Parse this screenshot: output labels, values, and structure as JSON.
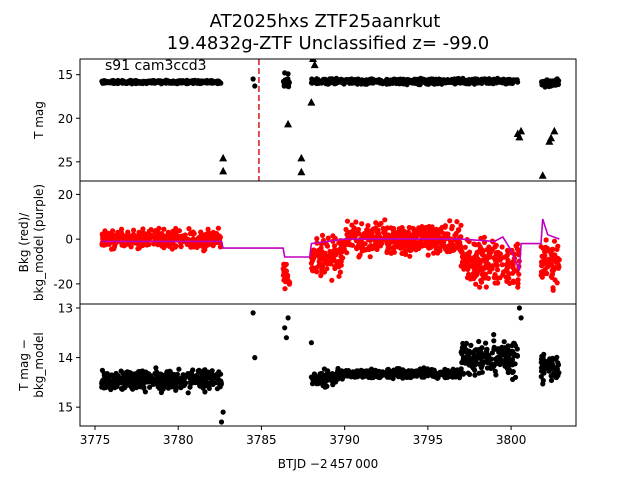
{
  "figure": {
    "title_line1": "AT2025hxs  ZTF25aanrkut",
    "title_line2": "19.4832g-ZTF Unclassified z= -99.0",
    "xlabel": "BTJD −2 457 000",
    "annotation": "s91 cam3ccd3"
  },
  "chart_data": [
    {
      "type": "scatter",
      "panel": "top",
      "ylabel": "T mag",
      "ylim": [
        27.2,
        13.2
      ],
      "xlim": [
        3774.1,
        3803.9
      ],
      "yticks": [
        15,
        20,
        25
      ],
      "vline": {
        "x": 3784.85,
        "color": "#d62728",
        "style": "dashed"
      },
      "series": [
        {
          "marker": "circle",
          "color": "#000000",
          "segments": [
            [
              3775.4,
              3782.6,
              15.6,
              16.1
            ],
            [
              3786.3,
              3786.7,
              15.3,
              16.5
            ],
            [
              3788.0,
              3800.4,
              15.3,
              16.2
            ],
            [
              3801.8,
              3802.9,
              15.3,
              16.6
            ]
          ],
          "extra": [
            [
              3784.5,
              15.5
            ],
            [
              3784.6,
              16.3
            ],
            [
              3786.4,
              14.8
            ],
            [
              3786.6,
              14.9
            ]
          ]
        },
        {
          "marker": "triangle",
          "color": "#000000",
          "points": [
            [
              3782.7,
              24.6
            ],
            [
              3782.7,
              26.1
            ],
            [
              3786.6,
              20.7
            ],
            [
              3787.4,
              24.6
            ],
            [
              3787.4,
              26.2
            ],
            [
              3788.0,
              18.2
            ],
            [
              3788.1,
              13.2
            ],
            [
              3788.2,
              13.9
            ],
            [
              3800.4,
              21.8
            ],
            [
              3800.5,
              22.2
            ],
            [
              3800.6,
              21.5
            ],
            [
              3801.9,
              26.6
            ],
            [
              3802.3,
              22.7
            ],
            [
              3802.4,
              22.3
            ],
            [
              3802.6,
              21.5
            ]
          ]
        }
      ]
    },
    {
      "type": "scatter",
      "panel": "middle",
      "ylabel": "Bkg (red)/\nbkg_model (purple)",
      "ylim": [
        -29,
        26
      ],
      "yticks": [
        -20,
        0,
        20
      ],
      "series": [
        {
          "name": "Bkg",
          "color": "#ff0000",
          "marker": "circle",
          "segments": [
            [
              3775.4,
              3782.6,
              -6,
              6
            ],
            [
              3786.3,
              3786.7,
              -25,
              -5
            ],
            [
              3788.0,
              3790.0,
              -20,
              5
            ],
            [
              3790.0,
              3797.0,
              -10,
              10
            ],
            [
              3797.0,
              3800.5,
              -26,
              5
            ],
            [
              3801.8,
              3802.9,
              -25,
              5
            ]
          ]
        },
        {
          "name": "bkg_model",
          "color": "#bf00bf",
          "type": "line",
          "points": [
            [
              3775.4,
              -1
            ],
            [
              3782.6,
              -1
            ],
            [
              3782.7,
              -4
            ],
            [
              3786.3,
              -4
            ],
            [
              3786.4,
              -8
            ],
            [
              3787.9,
              -8
            ],
            [
              3788.0,
              -2
            ],
            [
              3790.0,
              0
            ],
            [
              3797.0,
              0
            ],
            [
              3799.0,
              -1
            ],
            [
              3799.5,
              1
            ],
            [
              3800.0,
              -5
            ],
            [
              3800.4,
              -12
            ],
            [
              3800.5,
              -14
            ],
            [
              3800.6,
              -2
            ],
            [
              3801.8,
              -2
            ],
            [
              3801.9,
              9
            ],
            [
              3802.2,
              2
            ],
            [
              3802.9,
              0
            ]
          ]
        }
      ]
    },
    {
      "type": "scatter",
      "panel": "bottom",
      "ylabel": "T mag −\nbkg_model",
      "ylim": [
        15.38,
        12.92
      ],
      "yticks": [
        13,
        14,
        15
      ],
      "series": [
        {
          "marker": "circle",
          "color": "#000000",
          "segments": [
            [
              3775.4,
              3782.6,
              14.15,
              14.75
            ],
            [
              3788.0,
              3789.5,
              14.2,
              14.65
            ],
            [
              3789.5,
              3797.0,
              14.2,
              14.45
            ],
            [
              3797.0,
              3800.4,
              13.5,
              14.5
            ],
            [
              3801.8,
              3802.9,
              13.8,
              14.6
            ]
          ],
          "extra": [
            [
              3784.5,
              13.1
            ],
            [
              3784.6,
              14.0
            ],
            [
              3786.4,
              13.4
            ],
            [
              3786.5,
              13.6
            ],
            [
              3786.6,
              13.2
            ],
            [
              3788.0,
              13.7
            ],
            [
              3782.6,
              15.3
            ],
            [
              3782.7,
              15.1
            ],
            [
              3800.5,
              13.0
            ],
            [
              3800.6,
              13.2
            ]
          ]
        }
      ]
    }
  ]
}
